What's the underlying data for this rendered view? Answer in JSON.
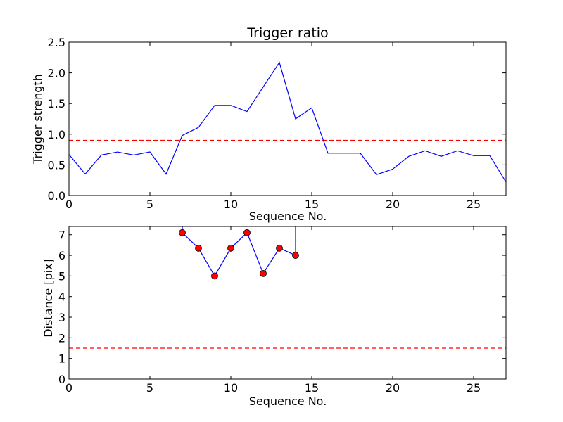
{
  "chart_data": [
    {
      "type": "line",
      "title": "Trigger ratio",
      "xlabel": "Sequence No.",
      "ylabel": "Trigger strength",
      "xlim": [
        0,
        27
      ],
      "ylim": [
        0.0,
        2.5
      ],
      "xticks": [
        0,
        5,
        10,
        15,
        20,
        25
      ],
      "yticks": [
        0.0,
        0.5,
        1.0,
        1.5,
        2.0,
        2.5
      ],
      "xtick_labels": [
        "0",
        "5",
        "10",
        "15",
        "20",
        "25"
      ],
      "ytick_labels": [
        "0.0",
        "0.5",
        "1.0",
        "1.5",
        "2.0",
        "2.5"
      ],
      "grid": false,
      "series": [
        {
          "color": "#0000ff",
          "style": "solid",
          "x": [
            0,
            1,
            2,
            3,
            4,
            5,
            6,
            7,
            8,
            9,
            10,
            11,
            12,
            13,
            14,
            15,
            16,
            17,
            18,
            19,
            20,
            21,
            22,
            23,
            24,
            25,
            26,
            27
          ],
          "y": [
            0.67,
            0.35,
            0.66,
            0.71,
            0.66,
            0.71,
            0.35,
            0.98,
            1.11,
            1.47,
            1.47,
            1.37,
            1.77,
            2.17,
            1.25,
            1.43,
            0.69,
            0.69,
            0.69,
            0.34,
            0.43,
            0.64,
            0.73,
            0.64,
            0.73,
            0.65,
            0.65,
            0.22
          ]
        }
      ],
      "threshold": {
        "y": 0.9,
        "color": "#ff0000",
        "style": "dashed"
      }
    },
    {
      "type": "line",
      "title": "",
      "xlabel": "Sequence No.",
      "ylabel": "Distance [pix]",
      "xlim": [
        0,
        27
      ],
      "ylim": [
        0,
        7.4
      ],
      "xticks": [
        0,
        5,
        10,
        15,
        20,
        25
      ],
      "yticks": [
        0,
        1,
        2,
        3,
        4,
        5,
        6,
        7
      ],
      "xtick_labels": [
        "0",
        "5",
        "10",
        "15",
        "20",
        "25"
      ],
      "ytick_labels": [
        "0",
        "1",
        "2",
        "3",
        "4",
        "5",
        "6",
        "7"
      ],
      "grid": false,
      "series": [
        {
          "color": "#0000ff",
          "marker": "circle",
          "marker_color": "#ff0000",
          "x": [
            7,
            8,
            9,
            10,
            11,
            12,
            13,
            14
          ],
          "y": [
            7.1,
            6.35,
            5.0,
            6.35,
            7.1,
            5.12,
            6.35,
            6.0
          ]
        }
      ],
      "offscale_segments": [
        {
          "x": 7,
          "note": "line continues above axis top"
        },
        {
          "x": 14,
          "note": "line continues above axis top"
        }
      ],
      "threshold": {
        "y": 1.5,
        "color": "#ff0000",
        "style": "dashed"
      }
    }
  ]
}
